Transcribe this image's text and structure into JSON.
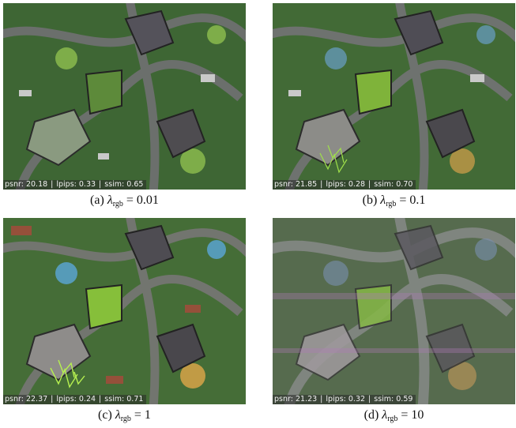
{
  "panels": [
    {
      "label": "(a)",
      "lambda_sym": "λ",
      "lambda_sub": "rgb",
      "lambda_value": "= 0.01",
      "metrics": {
        "psnr": "psnr: 20.18",
        "lpips": "lpips: 0.33",
        "ssim": "ssim: 0.65"
      }
    },
    {
      "label": "(b)",
      "lambda_sym": "λ",
      "lambda_sub": "rgb",
      "lambda_value": "= 0.1",
      "metrics": {
        "psnr": "psnr: 21.85",
        "lpips": "lpips: 0.28",
        "ssim": "ssim: 0.70"
      }
    },
    {
      "label": "(c)",
      "lambda_sym": "λ",
      "lambda_sub": "rgb",
      "lambda_value": "= 1",
      "metrics": {
        "psnr": "psnr: 22.37",
        "lpips": "lpips: 0.24",
        "ssim": "ssim: 0.71"
      }
    },
    {
      "label": "(d)",
      "lambda_sym": "λ",
      "lambda_sub": "rgb",
      "lambda_value": "= 10",
      "metrics": {
        "psnr": "psnr: 21.23",
        "lpips": "lpips: 0.32",
        "ssim": "ssim: 0.59"
      }
    }
  ],
  "separator": "|"
}
